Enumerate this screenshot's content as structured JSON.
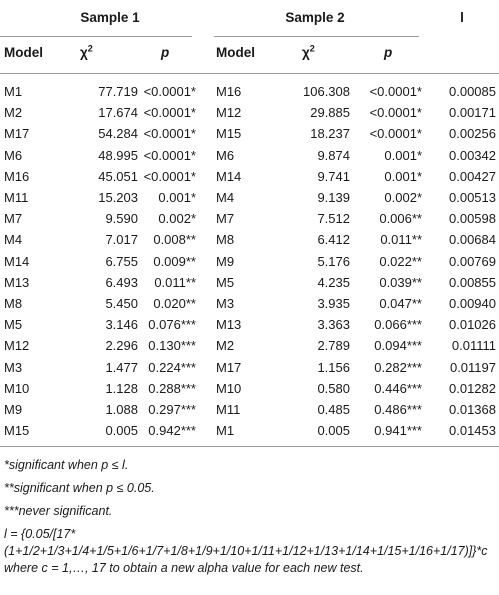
{
  "headers": {
    "sample1": "Sample 1",
    "sample2": "Sample 2",
    "l": "l",
    "model": "Model",
    "chi_base": "χ",
    "chi_sup": "2",
    "p": "p"
  },
  "rows": [
    {
      "m1": "M1",
      "c1": "77.719",
      "p1": "<0.0001*",
      "m2": "M16",
      "c2": "106.308",
      "p2": "<0.0001*",
      "l": "0.00085"
    },
    {
      "m1": "M2",
      "c1": "17.674",
      "p1": "<0.0001*",
      "m2": "M12",
      "c2": "29.885",
      "p2": "<0.0001*",
      "l": "0.00171"
    },
    {
      "m1": "M17",
      "c1": "54.284",
      "p1": "<0.0001*",
      "m2": "M15",
      "c2": "18.237",
      "p2": "<0.0001*",
      "l": "0.00256"
    },
    {
      "m1": "M6",
      "c1": "48.995",
      "p1": "<0.0001*",
      "m2": "M6",
      "c2": "9.874",
      "p2": "0.001*",
      "l": "0.00342"
    },
    {
      "m1": "M16",
      "c1": "45.051",
      "p1": "<0.0001*",
      "m2": "M14",
      "c2": "9.741",
      "p2": "0.001*",
      "l": "0.00427"
    },
    {
      "m1": "M11",
      "c1": "15.203",
      "p1": "0.001*",
      "m2": "M4",
      "c2": "9.139",
      "p2": "0.002*",
      "l": "0.00513"
    },
    {
      "m1": "M7",
      "c1": "9.590",
      "p1": "0.002*",
      "m2": "M7",
      "c2": "7.512",
      "p2": "0.006**",
      "l": "0.00598"
    },
    {
      "m1": "M4",
      "c1": "7.017",
      "p1": "0.008**",
      "m2": "M8",
      "c2": "6.412",
      "p2": "0.011**",
      "l": "0.00684"
    },
    {
      "m1": "M14",
      "c1": "6.755",
      "p1": "0.009**",
      "m2": "M9",
      "c2": "5.176",
      "p2": "0.022**",
      "l": "0.00769"
    },
    {
      "m1": "M13",
      "c1": "6.493",
      "p1": "0.011**",
      "m2": "M5",
      "c2": "4.235",
      "p2": "0.039**",
      "l": "0.00855"
    },
    {
      "m1": "M8",
      "c1": "5.450",
      "p1": "0.020**",
      "m2": "M3",
      "c2": "3.935",
      "p2": "0.047**",
      "l": "0.00940"
    },
    {
      "m1": "M5",
      "c1": "3.146",
      "p1": "0.076***",
      "m2": "M13",
      "c2": "3.363",
      "p2": "0.066***",
      "l": "0.01026"
    },
    {
      "m1": "M12",
      "c1": "2.296",
      "p1": "0.130***",
      "m2": "M2",
      "c2": "2.789",
      "p2": "0.094***",
      "l": "0.01111"
    },
    {
      "m1": "M3",
      "c1": "1.477",
      "p1": "0.224***",
      "m2": "M17",
      "c2": "1.156",
      "p2": "0.282***",
      "l": "0.01197"
    },
    {
      "m1": "M10",
      "c1": "1.128",
      "p1": "0.288***",
      "m2": "M10",
      "c2": "0.580",
      "p2": "0.446***",
      "l": "0.01282"
    },
    {
      "m1": "M9",
      "c1": "1.088",
      "p1": "0.297***",
      "m2": "M11",
      "c2": "0.485",
      "p2": "0.486***",
      "l": "0.01368"
    },
    {
      "m1": "M15",
      "c1": "0.005",
      "p1": "0.942***",
      "m2": "M1",
      "c2": "0.005",
      "p2": "0.941***",
      "l": "0.01453"
    }
  ],
  "notes": {
    "n1": "*significant when p ≤ l.",
    "n2": "**significant when p ≤ 0.05.",
    "n3": "***never significant.",
    "n4": "l = {0.05/[17*(1+1/2+1/3+1/4+1/5+1/6+1/7+1/8+1/9+1/10+1/11+1/12+1/13+1/14+1/15+1/16+1/17)]}*c where c = 1,…, 17 to obtain a new alpha value for each new test."
  }
}
